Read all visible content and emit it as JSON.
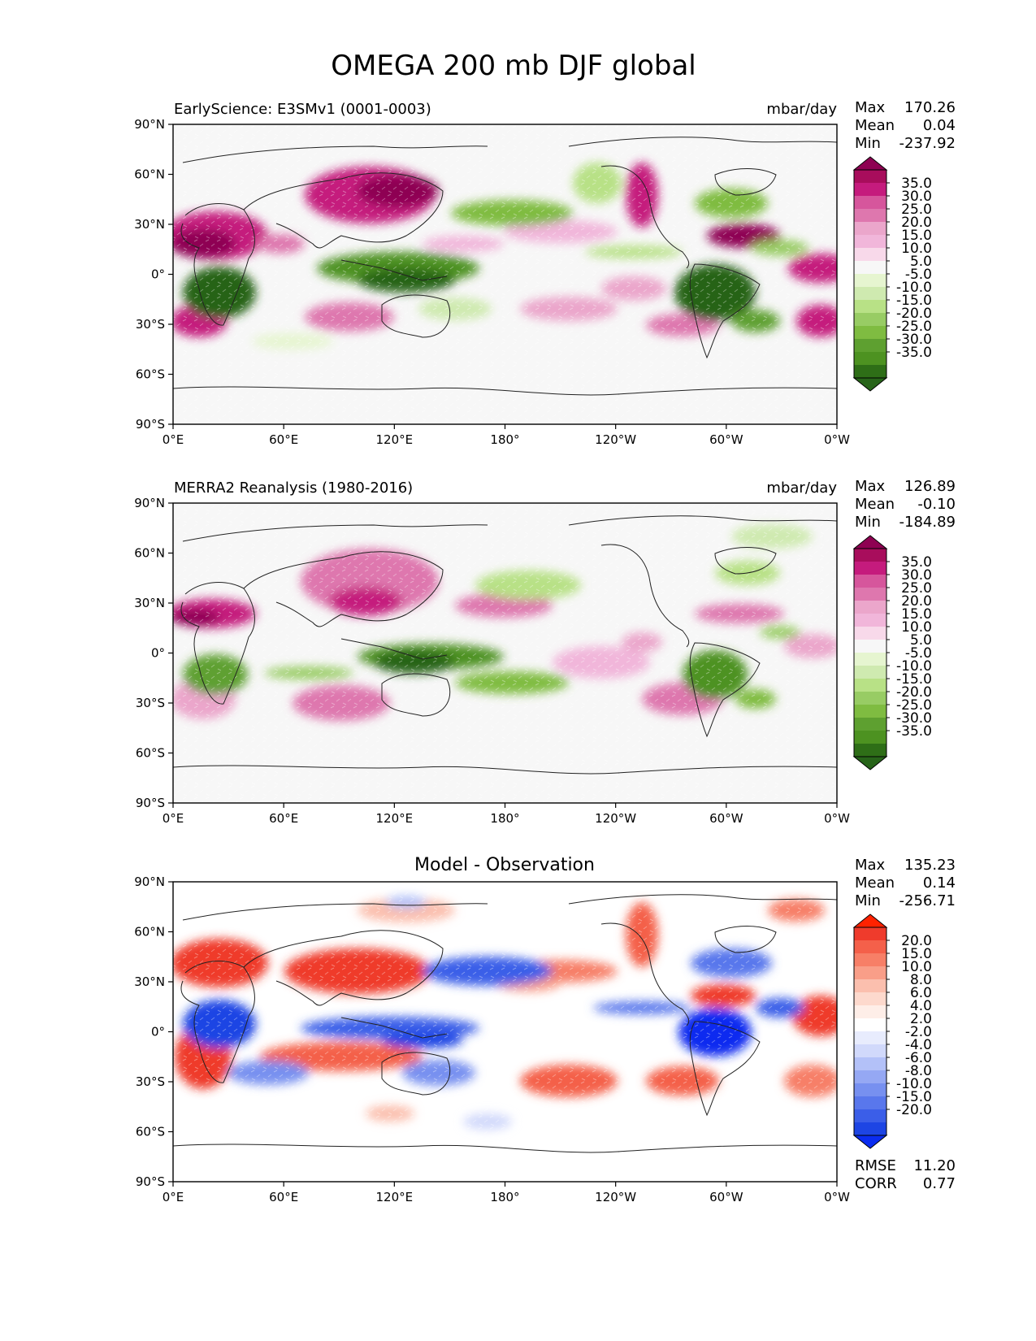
{
  "figure": {
    "title": "OMEGA 200 mb DJF global"
  },
  "ticks": {
    "lon": [
      "0°E",
      "60°E",
      "120°E",
      "180°",
      "120°W",
      "60°W",
      "0°W"
    ],
    "lat": [
      "90°N",
      "60°N",
      "30°N",
      "0°",
      "30°S",
      "60°S",
      "90°S"
    ]
  },
  "stat_labels": {
    "max": "Max",
    "mean": "Mean",
    "min": "Min",
    "rmse": "RMSE",
    "corr": "CORR"
  },
  "chart_data": [
    {
      "type": "heatmap",
      "title_left": "EarlyScience: E3SMv1 (0001-0003)",
      "title_right": "mbar/day",
      "stats": {
        "max": "170.26",
        "mean": "0.04",
        "min": "-237.92"
      },
      "colorbar": {
        "levels": [
          "35.0",
          "30.0",
          "25.0",
          "20.0",
          "15.0",
          "10.0",
          "5.0",
          "-5.0",
          "-10.0",
          "-15.0",
          "-20.0",
          "-25.0",
          "-30.0",
          "-35.0"
        ],
        "colors": [
          "#8e0152",
          "#a80d5c",
          "#c51b7d",
          "#d6569c",
          "#de77ae",
          "#eba6cb",
          "#f1b6da",
          "#f8d9ea",
          "#f7f7f7",
          "#e6f5d0",
          "#cfeab0",
          "#b8e186",
          "#98cc64",
          "#7fbc41",
          "#5ea030",
          "#4d9221",
          "#2e6e17",
          "#276419"
        ]
      },
      "xlim": [
        0,
        360
      ],
      "ylim": [
        -90,
        90
      ]
    },
    {
      "type": "heatmap",
      "title_left": "MERRA2 Reanalysis (1980-2016)",
      "title_right": "mbar/day",
      "stats": {
        "max": "126.89",
        "mean": "-0.10",
        "min": "-184.89"
      },
      "colorbar": {
        "levels": [
          "35.0",
          "30.0",
          "25.0",
          "20.0",
          "15.0",
          "10.0",
          "5.0",
          "-5.0",
          "-10.0",
          "-15.0",
          "-20.0",
          "-25.0",
          "-30.0",
          "-35.0"
        ],
        "colors": [
          "#8e0152",
          "#a80d5c",
          "#c51b7d",
          "#d6569c",
          "#de77ae",
          "#eba6cb",
          "#f1b6da",
          "#f8d9ea",
          "#f7f7f7",
          "#e6f5d0",
          "#cfeab0",
          "#b8e186",
          "#98cc64",
          "#7fbc41",
          "#5ea030",
          "#4d9221",
          "#2e6e17",
          "#276419"
        ]
      },
      "xlim": [
        0,
        360
      ],
      "ylim": [
        -90,
        90
      ]
    },
    {
      "type": "heatmap",
      "title_center": "Model - Observation",
      "stats": {
        "max": "135.23",
        "mean": "0.14",
        "min": "-256.71",
        "rmse": "11.20",
        "corr": "0.77"
      },
      "colorbar": {
        "levels": [
          "20.0",
          "15.0",
          "10.0",
          "8.0",
          "6.0",
          "4.0",
          "2.0",
          "-2.0",
          "-4.0",
          "-6.0",
          "-8.0",
          "-10.0",
          "-15.0",
          "-20.0"
        ],
        "colors": [
          "#ff2200",
          "#ef3b2c",
          "#f4604a",
          "#f77f67",
          "#f99e88",
          "#fbbfae",
          "#fdd9cd",
          "#feeee8",
          "#ffffff",
          "#e8ecfd",
          "#d1d9fb",
          "#b3c1f8",
          "#95a8f4",
          "#7790f0",
          "#5977ec",
          "#3b5ee8",
          "#1d45e4",
          "#0a2cf0"
        ]
      },
      "xlim": [
        0,
        360
      ],
      "ylim": [
        -90,
        90
      ]
    }
  ]
}
